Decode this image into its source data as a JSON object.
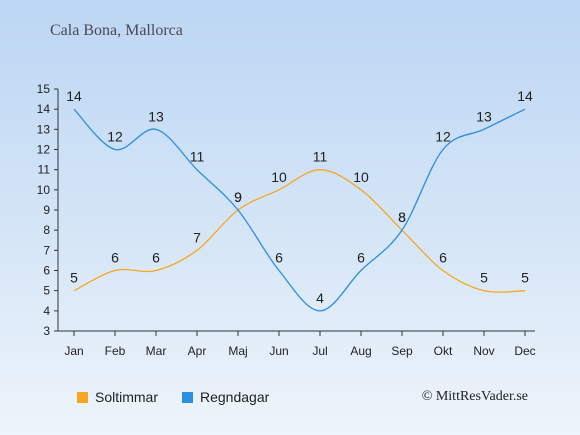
{
  "title": "Cala Bona, Mallorca",
  "copyright": "© MittResVader.se",
  "chart_data": {
    "type": "line",
    "categories": [
      "Jan",
      "Feb",
      "Mar",
      "Apr",
      "Maj",
      "Jun",
      "Jul",
      "Aug",
      "Sep",
      "Okt",
      "Nov",
      "Dec"
    ],
    "ylim": [
      3,
      15
    ],
    "yticks": [
      3,
      4,
      5,
      6,
      7,
      8,
      9,
      10,
      11,
      12,
      13,
      14,
      15
    ],
    "grid": false,
    "legend_position": "bottom-left",
    "series": [
      {
        "name": "Soltimmar",
        "color": "#f5a623",
        "values": [
          5,
          6,
          6,
          7,
          9,
          10,
          11,
          10,
          8,
          6,
          5,
          5
        ]
      },
      {
        "name": "Regndagar",
        "color": "#2b8ee0",
        "values": [
          14,
          12,
          13,
          11,
          9,
          6,
          4,
          6,
          8,
          12,
          13,
          14
        ]
      }
    ]
  }
}
